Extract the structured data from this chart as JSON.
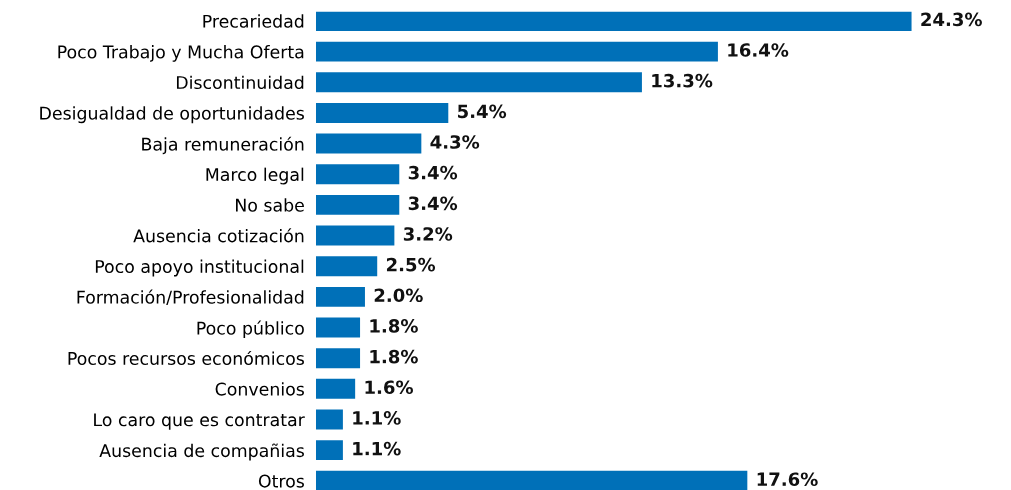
{
  "chart_data": {
    "type": "bar",
    "orientation": "horizontal",
    "categories": [
      "Precariedad",
      "Poco Trabajo y Mucha Oferta",
      "Discontinuidad",
      "Desigualdad de oportunidades",
      "Baja remuneración",
      "Marco legal",
      "No sabe",
      "Ausencia cotización",
      "Poco apoyo institucional",
      "Formación/Profesionalidad",
      "Poco público",
      "Pocos recursos económicos",
      "Convenios",
      "Lo caro que es contratar",
      "Ausencia de compañias",
      "Otros"
    ],
    "values": [
      24.3,
      16.4,
      13.3,
      5.4,
      4.3,
      3.4,
      3.4,
      3.2,
      2.5,
      2.0,
      1.8,
      1.8,
      1.6,
      1.1,
      1.1,
      17.6
    ],
    "value_labels": [
      "24.3%",
      "16.4%",
      "13.3%",
      "5.4%",
      "4.3%",
      "3.4%",
      "3.4%",
      "3.2%",
      "2.5%",
      "2.0%",
      "1.8%",
      "1.8%",
      "1.6%",
      "1.1%",
      "1.1%",
      "17.6%"
    ],
    "color": "#0070b8",
    "grid": false,
    "legend": false
  }
}
